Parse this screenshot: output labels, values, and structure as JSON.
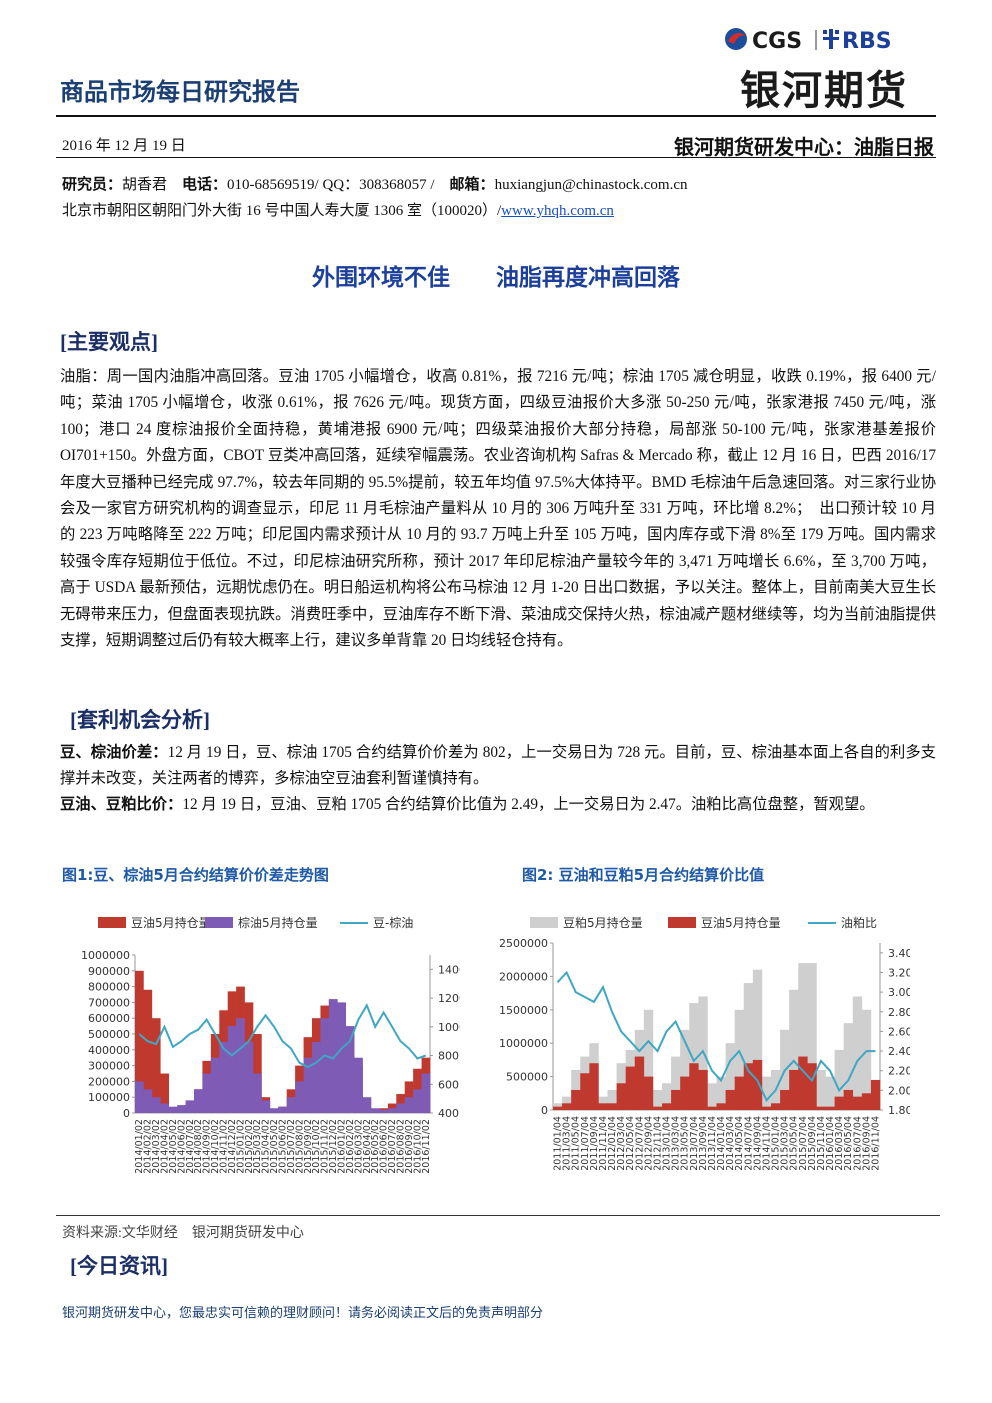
{
  "header": {
    "title": "商品市场每日研究报告",
    "logo_cgs": "CGS",
    "logo_rbs": "RBS",
    "brand": "银河期货",
    "date": "2016 年 12 月 19 日",
    "center": "银河期货研发中心：油脂日报"
  },
  "contact": {
    "researcher_label": "研究员：",
    "researcher": "胡香君",
    "phone_label": "电话：",
    "phone": "010-68569519/ QQ：308368057 /",
    "email_label": "邮箱：",
    "email": "huxiangjun@chinastock.com.cn",
    "address": "北京市朝阳区朝阳门外大街 16 号中国人寿大厦 1306 室（100020）/",
    "website": "www.yhqh.com.cn"
  },
  "headline": "外围环境不佳　　油脂再度冲高回落",
  "views": {
    "heading": "[主要观点]",
    "text": "油脂：周一国内油脂冲高回落。豆油 1705 小幅增仓，收高 0.81%，报 7216 元/吨；棕油 1705 减仓明显，收跌 0.19%，报 6400 元/吨；菜油 1705 小幅增仓，收涨 0.61%，报 7626 元/吨。现货方面，四级豆油报价大多涨 50-250 元/吨，张家港报 7450 元/吨，涨 100；港口 24 度棕油报价全面持稳，黄埔港报 6900 元/吨；四级菜油报价大部分持稳，局部涨 50-100 元/吨，张家港基差报价 OI701+150。外盘方面，CBOT 豆类冲高回落，延续窄幅震荡。农业咨询机构 Safras & Mercado 称，截止 12 月 16 日，巴西 2016/17 年度大豆播种已经完成 97.7%，较去年同期的 95.5%提前，较五年均值 97.5%大体持平。BMD 毛棕油午后急速回落。对三家行业协会及一家官方研究机构的调查显示，印尼 11 月毛棕油产量料从 10 月的 306 万吨升至 331 万吨，环比增 8.2%；　出口预计较 10 月的 223 万吨略降至 222 万吨；印尼国内需求预计从 10 月的 93.7 万吨上升至 105 万吨，国内库存或下滑 8%至 179 万吨。国内需求较强令库存短期位于低位。不过，印尼棕油研究所称，预计 2017 年印尼棕油产量较今年的 3,471 万吨增长 6.6%，至 3,700 万吨，高于 USDA 最新预估，远期忧虑仍在。明日船运机构将公布马棕油 12 月 1-20 日出口数据，予以关注。整体上，目前南美大豆生长无碍带来压力，但盘面表现抗跌。消费旺季中，豆油库存不断下滑、菜油成交保持火热，棕油减产题材继续等，均为当前油脂提供支撑，短期调整过后仍有较大概率上行，建议多单背靠 20 日均线轻仓持有。"
  },
  "arbitrage": {
    "heading": "[套利机会分析]",
    "items": [
      {
        "label": "豆、棕油价差：",
        "text": "12 月 19 日，豆、棕油 1705 合约结算价价差为 802，上一交易日为 728 元。目前，豆、棕油基本面上各自的利多支撑并未改变，关注两者的博弈，多棕油空豆油套利暂谨慎持有。"
      },
      {
        "label": "豆油、豆粕比价：",
        "text": "12 月 19 日，豆油、豆粕 1705 合约结算价比值为 2.49，上一交易日为 2.47。油粕比高位盘整，暂观望。"
      }
    ]
  },
  "chart_data": [
    {
      "type": "combo",
      "title": "图1:豆、棕油5月合约结算价价差走势图",
      "categories": [
        "2014/01/02",
        "2014/02/02",
        "2014/03/02",
        "2014/04/02",
        "2014/05/02",
        "2014/06/02",
        "2014/07/02",
        "2014/08/02",
        "2014/09/02",
        "2014/10/02",
        "2014/11/02",
        "2014/12/02",
        "2015/01/02",
        "2015/02/02",
        "2015/03/02",
        "2015/04/02",
        "2015/05/02",
        "2015/06/02",
        "2015/07/02",
        "2015/08/02",
        "2015/09/02",
        "2015/10/02",
        "2015/11/02",
        "2015/12/02",
        "2016/01/02",
        "2016/02/02",
        "2016/03/02",
        "2016/04/02",
        "2016/05/02",
        "2016/06/02",
        "2016/07/02",
        "2016/08/02",
        "2016/09/02",
        "2016/10/02",
        "2016/11/02"
      ],
      "series": [
        {
          "name": "豆油5月持仓量",
          "kind": "bar",
          "color": "#c0392f",
          "values": [
            900000,
            780000,
            600000,
            250000,
            30000,
            20000,
            60000,
            150000,
            330000,
            500000,
            650000,
            770000,
            800000,
            700000,
            500000,
            100000,
            20000,
            40000,
            150000,
            300000,
            480000,
            600000,
            680000,
            720000,
            650000,
            500000,
            300000,
            40000,
            20000,
            30000,
            60000,
            120000,
            200000,
            280000,
            350000
          ]
        },
        {
          "name": "棕油5月持仓量",
          "kind": "bar",
          "color": "#7e5bb4",
          "values": [
            200000,
            150000,
            100000,
            60000,
            40000,
            50000,
            80000,
            150000,
            250000,
            350000,
            450000,
            550000,
            600000,
            450000,
            250000,
            80000,
            30000,
            40000,
            100000,
            200000,
            350000,
            450000,
            600000,
            720000,
            700000,
            550000,
            350000,
            100000,
            30000,
            20000,
            30000,
            60000,
            100000,
            150000,
            250000
          ]
        },
        {
          "name": "豆-棕油",
          "kind": "line",
          "axis": "y2",
          "color": "#3fa7c4",
          "values": [
            950,
            900,
            880,
            1000,
            860,
            900,
            950,
            980,
            1050,
            950,
            850,
            800,
            850,
            900,
            1000,
            1080,
            1000,
            900,
            850,
            750,
            720,
            750,
            800,
            780,
            850,
            900,
            1050,
            1150,
            1000,
            1100,
            1000,
            900,
            850,
            780,
            800
          ]
        }
      ],
      "ylim": [
        0,
        1000000
      ],
      "yticks": [
        0,
        100000,
        200000,
        300000,
        400000,
        500000,
        600000,
        700000,
        800000,
        900000,
        1000000
      ],
      "y2lim": [
        400,
        1500
      ],
      "y2ticks": [
        400,
        600,
        800,
        1000,
        1200,
        1400
      ],
      "grid": false
    },
    {
      "type": "combo",
      "title": "图2:  豆油和豆粕5月合约结算价比值",
      "categories": [
        "2011/01/04",
        "2011/03/04",
        "2011/05/04",
        "2011/07/04",
        "2011/09/04",
        "2011/11/04",
        "2012/01/04",
        "2012/03/04",
        "2012/05/04",
        "2012/07/04",
        "2012/09/04",
        "2012/11/04",
        "2013/01/04",
        "2013/03/04",
        "2013/05/04",
        "2013/07/04",
        "2013/09/04",
        "2013/11/04",
        "2014/01/04",
        "2014/03/04",
        "2014/05/04",
        "2014/07/04",
        "2014/09/04",
        "2014/11/04",
        "2015/01/04",
        "2015/03/04",
        "2015/05/04",
        "2015/07/04",
        "2015/09/04",
        "2015/11/04",
        "2016/01/04",
        "2016/03/04",
        "2016/05/04",
        "2016/07/04",
        "2016/09/04",
        "2016/11/04"
      ],
      "series": [
        {
          "name": "豆粕5月持仓量",
          "kind": "bar",
          "color": "#cfcfcf",
          "values": [
            100000,
            200000,
            600000,
            800000,
            1000000,
            200000,
            300000,
            700000,
            900000,
            1200000,
            1500000,
            300000,
            400000,
            800000,
            1200000,
            1600000,
            1700000,
            400000,
            500000,
            1000000,
            1500000,
            1900000,
            2100000,
            500000,
            600000,
            1200000,
            1800000,
            2200000,
            2200000,
            600000,
            500000,
            900000,
            1300000,
            1700000,
            1500000,
            400000
          ]
        },
        {
          "name": "豆油5月持仓量",
          "kind": "bar",
          "color": "#c0392f",
          "values": [
            50000,
            100000,
            300000,
            550000,
            700000,
            100000,
            100000,
            400000,
            650000,
            800000,
            500000,
            50000,
            100000,
            300000,
            500000,
            700000,
            600000,
            50000,
            100000,
            300000,
            500000,
            700000,
            750000,
            50000,
            100000,
            300000,
            600000,
            800000,
            700000,
            50000,
            50000,
            200000,
            300000,
            200000,
            250000,
            450000
          ]
        },
        {
          "name": "油粕比",
          "kind": "line",
          "axis": "y2",
          "color": "#3fa7c4",
          "values": [
            3.1,
            3.2,
            3.0,
            2.95,
            2.9,
            3.05,
            2.8,
            2.6,
            2.5,
            2.4,
            2.5,
            2.4,
            2.6,
            2.7,
            2.5,
            2.3,
            2.4,
            2.2,
            2.1,
            2.3,
            2.4,
            2.2,
            2.1,
            1.9,
            2.0,
            2.2,
            2.3,
            2.2,
            2.1,
            2.3,
            2.2,
            2.0,
            2.1,
            2.3,
            2.4,
            2.4
          ]
        }
      ],
      "ylim": [
        0,
        2500000
      ],
      "yticks": [
        0,
        500000,
        1000000,
        1500000,
        2000000,
        2500000
      ],
      "y2lim": [
        1.8,
        3.5
      ],
      "y2ticks": [
        {
          "value": 1.8,
          "label": "1.80"
        },
        {
          "value": 2.0,
          "label": "2.00"
        },
        {
          "value": 2.2,
          "label": "2.20"
        },
        {
          "value": 2.4,
          "label": "2.40"
        },
        {
          "value": 2.6,
          "label": "2.60"
        },
        {
          "value": 2.8,
          "label": "2.80"
        },
        {
          "value": 3.0,
          "label": "3.00"
        },
        {
          "value": 3.2,
          "label": "3.20"
        },
        {
          "value": 3.4,
          "label": "3.40"
        }
      ],
      "grid": false
    }
  ],
  "source": "资料来源:文华财经　银河期货研发中心",
  "news_heading": "[今日资讯]",
  "footer": "银河期货研发中心，您最忠实可信赖的理财顾问！请务必阅读正文后的免责声明部分"
}
